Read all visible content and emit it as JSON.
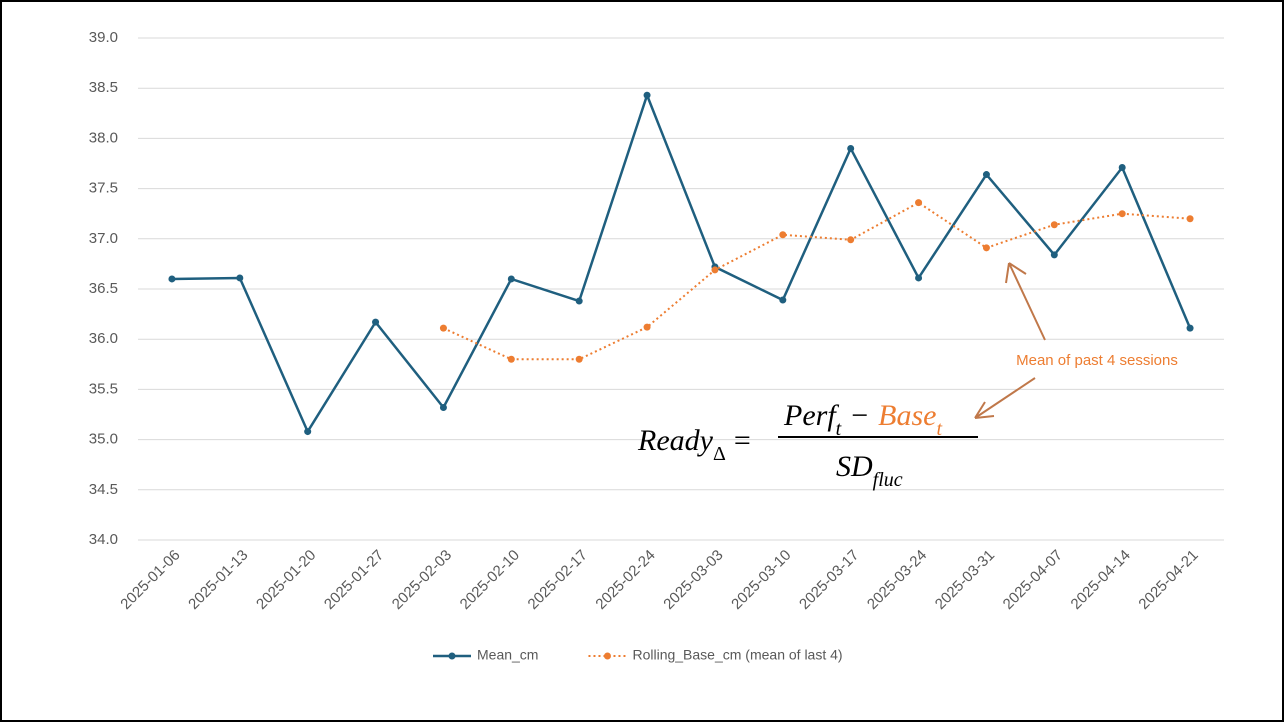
{
  "chart_data": {
    "type": "line",
    "categories": [
      "2025-01-06",
      "2025-01-13",
      "2025-01-20",
      "2025-01-27",
      "2025-02-03",
      "2025-02-10",
      "2025-02-17",
      "2025-02-24",
      "2025-03-03",
      "2025-03-10",
      "2025-03-17",
      "2025-03-24",
      "2025-03-31",
      "2025-04-07",
      "2025-04-14",
      "2025-04-21"
    ],
    "series": [
      {
        "name": "Mean_cm",
        "color": "#1f5f7f",
        "style": "solid",
        "values": [
          36.6,
          36.61,
          35.08,
          36.17,
          35.32,
          36.6,
          36.38,
          38.43,
          36.72,
          36.39,
          37.9,
          36.61,
          37.64,
          36.84,
          37.71,
          36.11
        ]
      },
      {
        "name": "Rolling_Base_cm (mean of last 4)",
        "color": "#ed7d31",
        "style": "dotted",
        "values": [
          null,
          null,
          null,
          null,
          36.11,
          35.8,
          35.8,
          36.12,
          36.69,
          37.04,
          36.99,
          37.36,
          36.91,
          37.14,
          37.25,
          37.2
        ]
      }
    ],
    "ylim": [
      34,
      39
    ],
    "yticks": [
      {
        "value": 34,
        "label": "34.0"
      },
      34.5,
      {
        "value": 35,
        "label": "35.0"
      },
      35.5,
      {
        "value": 36,
        "label": "36.0"
      },
      36.5,
      {
        "value": 37,
        "label": "37.0"
      },
      37.5,
      {
        "value": 38,
        "label": "38.0"
      },
      38.5,
      {
        "value": 39,
        "label": "39.0"
      }
    ],
    "grid": true,
    "legend": "bottom",
    "annotation": "Mean of past 4 sessions",
    "formula": {
      "lhs": "Ready",
      "lhs_sub": "Δ",
      "eq": "=",
      "num": "Perf",
      "num_sub": "t",
      "minus": "−",
      "base": "Base",
      "base_sub": "t",
      "den": "SD",
      "den_sub": "fluc"
    }
  }
}
